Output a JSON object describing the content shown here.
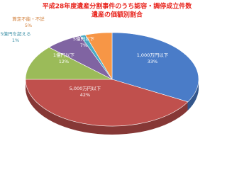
{
  "chart_data": {
    "type": "pie",
    "title": "平成28年度遺産分割事件のうち認容・調停成立件数",
    "subtitle": "遺産の価額別割合",
    "categories": [
      "1,000万円以下",
      "5,000万円以下",
      "1億円以下",
      "5億円以下",
      "5億円を超える",
      "算定不能・不詳"
    ],
    "values": [
      33,
      42,
      12,
      7,
      1,
      5
    ],
    "value_labels": [
      "33%",
      "42%",
      "12%",
      "7%",
      "1%",
      "5%"
    ],
    "colors": [
      "#4a7cc8",
      "#c0504d",
      "#9bbb59",
      "#8064a2",
      "#4bacc6",
      "#f79646"
    ]
  }
}
